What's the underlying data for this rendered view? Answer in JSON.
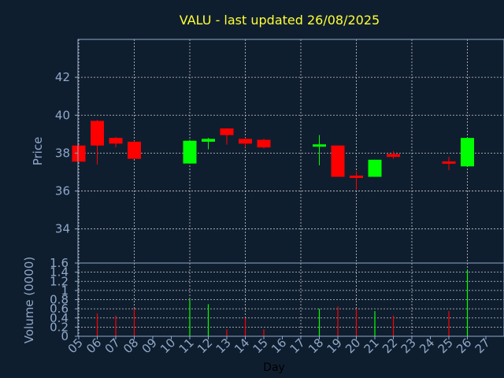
{
  "chart_data": [
    {
      "type": "candlestick",
      "title": "VALU - last updated 26/08/2025",
      "ylabel": "Price",
      "ylim": [
        32.2,
        44.0
      ],
      "yticks": [
        34,
        36,
        38,
        40,
        42
      ],
      "grid": true,
      "colors": {
        "up": "#00ff00",
        "down": "#ff0000",
        "background": "#0f1e2f",
        "grid": "#c8c8c8",
        "frame": "#8fa8c8",
        "title": "#ffff33",
        "text": "#8fa8c8"
      },
      "candles": [
        {
          "day": 5,
          "open": 38.4,
          "high": 38.45,
          "low": 37.55,
          "close": 37.55
        },
        {
          "day": 6,
          "open": 39.7,
          "high": 39.75,
          "low": 37.4,
          "close": 38.4
        },
        {
          "day": 7,
          "open": 38.8,
          "high": 38.85,
          "low": 38.3,
          "close": 38.5
        },
        {
          "day": 8,
          "open": 38.6,
          "high": 38.65,
          "low": 37.7,
          "close": 37.7
        },
        {
          "day": 11,
          "open": 37.45,
          "high": 38.7,
          "low": 37.45,
          "close": 38.65
        },
        {
          "day": 12,
          "open": 38.6,
          "high": 38.8,
          "low": 38.2,
          "close": 38.75
        },
        {
          "day": 13,
          "open": 39.3,
          "high": 39.3,
          "low": 38.45,
          "close": 38.95
        },
        {
          "day": 14,
          "open": 38.75,
          "high": 38.8,
          "low": 38.3,
          "close": 38.5
        },
        {
          "day": 15,
          "open": 38.7,
          "high": 38.75,
          "low": 38.25,
          "close": 38.3
        },
        {
          "day": 18,
          "open": 38.3,
          "high": 38.95,
          "low": 37.35,
          "close": 38.4
        },
        {
          "day": 19,
          "open": 38.4,
          "high": 38.4,
          "low": 36.75,
          "close": 36.75
        },
        {
          "day": 20,
          "open": 36.75,
          "high": 37.05,
          "low": 36.05,
          "close": 36.7
        },
        {
          "day": 21,
          "open": 36.75,
          "high": 37.65,
          "low": 36.75,
          "close": 37.65
        },
        {
          "day": 22,
          "open": 37.95,
          "high": 38.1,
          "low": 37.7,
          "close": 37.8
        },
        {
          "day": 25,
          "open": 37.5,
          "high": 37.8,
          "low": 37.1,
          "close": 37.4
        },
        {
          "day": 26,
          "open": 37.3,
          "high": 38.8,
          "low": 37.3,
          "close": 38.8
        }
      ]
    },
    {
      "type": "bar",
      "xlabel": "Day",
      "ylabel": "Volume (0000)",
      "ylim": [
        0,
        1.6
      ],
      "ytick_labels": [
        "0",
        "0.2",
        "0.4",
        "0.6",
        "0.8",
        "1",
        "1.2",
        "1.4",
        "1.6"
      ],
      "x_tick_labels": [
        "05",
        "06",
        "07",
        "08",
        "09",
        "10",
        "11",
        "12",
        "13",
        "14",
        "15",
        "16",
        "17",
        "18",
        "19",
        "20",
        "21",
        "22",
        "23",
        "24",
        "25",
        "26",
        "27"
      ],
      "xlim": [
        5,
        27
      ],
      "volumes": [
        {
          "day": 6,
          "value": 0.5,
          "direction": "down"
        },
        {
          "day": 7,
          "value": 0.45,
          "direction": "down"
        },
        {
          "day": 8,
          "value": 0.6,
          "direction": "down"
        },
        {
          "day": 11,
          "value": 0.8,
          "direction": "up"
        },
        {
          "day": 12,
          "value": 0.7,
          "direction": "up"
        },
        {
          "day": 13,
          "value": 0.15,
          "direction": "down"
        },
        {
          "day": 14,
          "value": 0.4,
          "direction": "down"
        },
        {
          "day": 15,
          "value": 0.15,
          "direction": "down"
        },
        {
          "day": 18,
          "value": 0.6,
          "direction": "up"
        },
        {
          "day": 19,
          "value": 0.65,
          "direction": "down"
        },
        {
          "day": 20,
          "value": 0.6,
          "direction": "down"
        },
        {
          "day": 21,
          "value": 0.55,
          "direction": "up"
        },
        {
          "day": 22,
          "value": 0.45,
          "direction": "down"
        },
        {
          "day": 25,
          "value": 0.55,
          "direction": "down"
        },
        {
          "day": 26,
          "value": 1.45,
          "direction": "up"
        }
      ]
    }
  ]
}
